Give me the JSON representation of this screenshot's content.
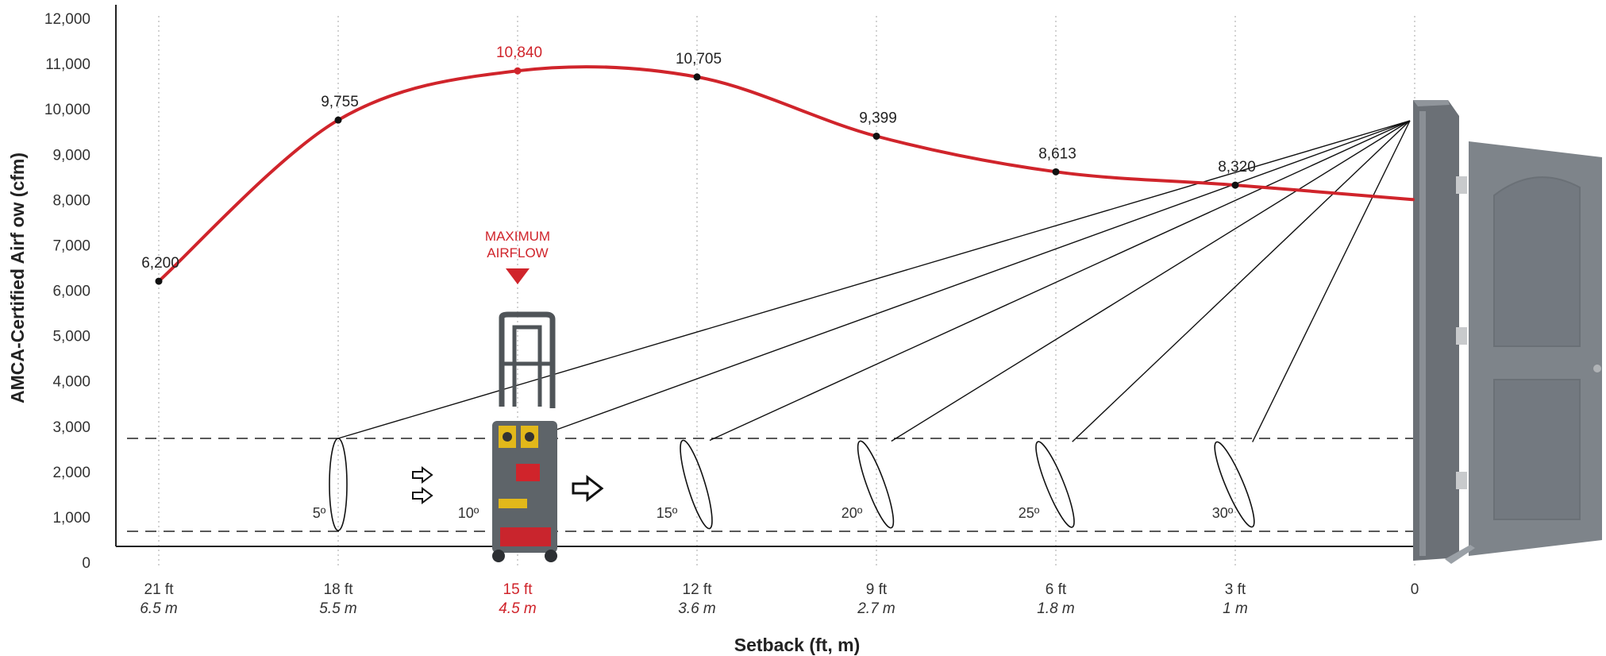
{
  "chart_data": {
    "type": "line",
    "xlabel": "Setback (ft, m)",
    "ylabel": "AMCA-Certified Airf ow (cfm)",
    "ylim": [
      0,
      12000
    ],
    "yticks": [
      "0",
      "1,000",
      "2,000",
      "3,000",
      "4,000",
      "5,000",
      "6,000",
      "7,000",
      "8,000",
      "9,000",
      "10,000",
      "11,000",
      "12,000"
    ],
    "ytick_values": [
      0,
      1000,
      2000,
      3000,
      4000,
      5000,
      6000,
      7000,
      8000,
      9000,
      10000,
      11000,
      12000
    ],
    "x_categories": [
      {
        "ft": "21 ft",
        "m": "6.5 m",
        "highlight": false
      },
      {
        "ft": "18 ft",
        "m": "5.5 m",
        "highlight": false
      },
      {
        "ft": "15 ft",
        "m": "4.5 m",
        "highlight": true
      },
      {
        "ft": "12 ft",
        "m": "3.6 m",
        "highlight": false
      },
      {
        "ft": "9 ft",
        "m": "2.7 m",
        "highlight": false
      },
      {
        "ft": "6 ft",
        "m": "1.8 m",
        "highlight": false
      },
      {
        "ft": "3 ft",
        "m": "1 m",
        "highlight": false
      },
      {
        "ft": "0",
        "m": "",
        "highlight": false
      }
    ],
    "series": [
      {
        "values": [
          6200,
          9755,
          10840,
          10705,
          9399,
          8613,
          8320
        ],
        "labels": [
          "6,200",
          "9,755",
          "10,840",
          "10,705",
          "9,399",
          "8,613",
          "8,320"
        ],
        "end_value": 8000,
        "max_index": 2,
        "color": "#d0242b"
      }
    ],
    "annotation": {
      "line1": "MAXIMUM",
      "line2": "AIRFLOW",
      "color": "#d0242b"
    },
    "angles": [
      "5º",
      "10º",
      "15º",
      "20º",
      "25º",
      "30º"
    ],
    "grid": "vertical-dotted",
    "legend": "none"
  }
}
